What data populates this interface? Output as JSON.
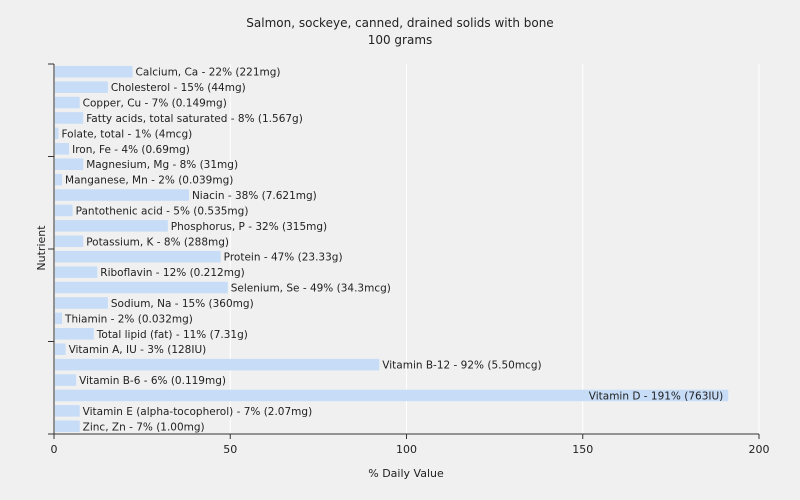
{
  "chart_data": {
    "type": "bar",
    "orientation": "horizontal",
    "title": "Salmon, sockeye, canned, drained solids with bone",
    "subtitle": "100 grams",
    "xlabel": "% Daily Value",
    "ylabel": "Nutrient",
    "xlim": [
      0,
      200
    ],
    "xticks": [
      0,
      50,
      100,
      150,
      200
    ],
    "grid": true,
    "bar_color": "#c6dcf7",
    "grid_color": "#ffffff",
    "categories": [
      "Calcium, Ca - 22% (221mg)",
      "Cholesterol - 15% (44mg)",
      "Copper, Cu - 7% (0.149mg)",
      "Fatty acids, total saturated - 8% (1.567g)",
      "Folate, total - 1% (4mcg)",
      "Iron, Fe - 4% (0.69mg)",
      "Magnesium, Mg - 8% (31mg)",
      "Manganese, Mn - 2% (0.039mg)",
      "Niacin - 38% (7.621mg)",
      "Pantothenic acid - 5% (0.535mg)",
      "Phosphorus, P - 32% (315mg)",
      "Potassium, K - 8% (288mg)",
      "Protein - 47% (23.33g)",
      "Riboflavin - 12% (0.212mg)",
      "Selenium, Se - 49% (34.3mcg)",
      "Sodium, Na - 15% (360mg)",
      "Thiamin - 2% (0.032mg)",
      "Total lipid (fat) - 11% (7.31g)",
      "Vitamin A, IU - 3% (128IU)",
      "Vitamin B-12 - 92% (5.50mcg)",
      "Vitamin B-6 - 6% (0.119mg)",
      "Vitamin D - 191% (763IU)",
      "Vitamin E (alpha-tocopherol) - 7% (2.07mg)",
      "Zinc, Zn - 7% (1.00mg)"
    ],
    "values": [
      22,
      15,
      7,
      8,
      1,
      4,
      8,
      2,
      38,
      5,
      32,
      8,
      47,
      12,
      49,
      15,
      2,
      11,
      3,
      92,
      6,
      191,
      7,
      7
    ]
  }
}
